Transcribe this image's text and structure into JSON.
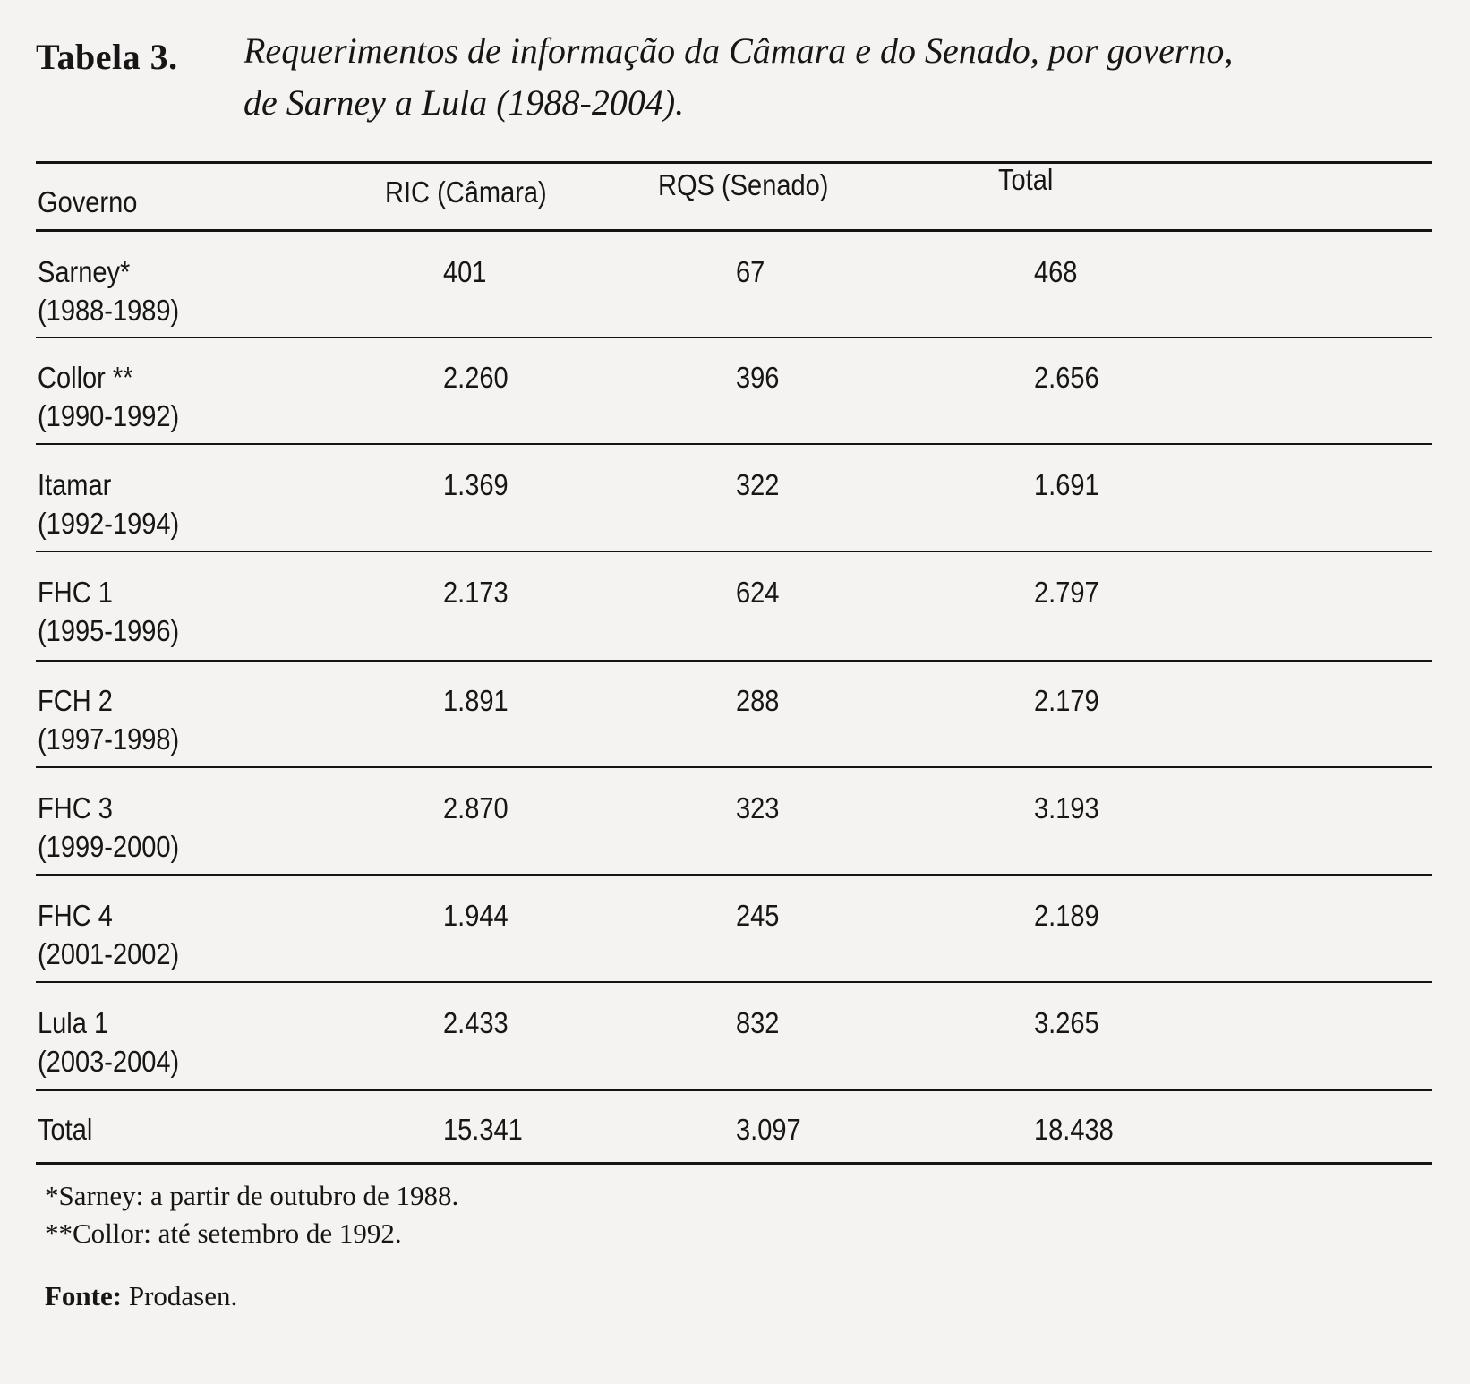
{
  "caption": {
    "label": "Tabela 3.",
    "title_line1": "Requerimentos de informação da Câmara e do Senado, por governo,",
    "title_line2": "de Sarney a Lula (1988-2004)."
  },
  "table": {
    "headers": {
      "governo": "Governo",
      "ric": "RIC (Câmara)",
      "rqs": "RQS (Senado)",
      "total": "Total"
    },
    "rows": [
      {
        "governo": "Sarney*",
        "years": "(1988-1989)",
        "ric": "401",
        "rqs": "67",
        "total": "468"
      },
      {
        "governo": "Collor **",
        "years": "(1990-1992)",
        "ric": "2.260",
        "rqs": "396",
        "total": "2.656"
      },
      {
        "governo": "Itamar",
        "years": "(1992-1994)",
        "ric": "1.369",
        "rqs": "322",
        "total": "1.691"
      },
      {
        "governo": "FHC 1",
        "years": "(1995-1996)",
        "ric": "2.173",
        "rqs": "624",
        "total": "2.797"
      },
      {
        "governo": "FCH 2",
        "years": "(1997-1998)",
        "ric": "1.891",
        "rqs": "288",
        "total": "2.179"
      },
      {
        "governo": "FHC 3",
        "years": "(1999-2000)",
        "ric": "2.870",
        "rqs": "323",
        "total": "3.193"
      },
      {
        "governo": "FHC 4",
        "years": "(2001-2002)",
        "ric": "1.944",
        "rqs": "245",
        "total": "2.189"
      },
      {
        "governo": "Lula 1",
        "years": "(2003-2004)",
        "ric": "2.433",
        "rqs": "832",
        "total": "3.265"
      }
    ],
    "total_row": {
      "governo": "Total",
      "ric": "15.341",
      "rqs": "3.097",
      "total": "18.438"
    }
  },
  "footnotes": {
    "note1": "*Sarney: a partir de outubro de 1988.",
    "note2": "**Collor: até setembro de 1992.",
    "source_label": "Fonte:",
    "source_value": "Prodasen."
  }
}
